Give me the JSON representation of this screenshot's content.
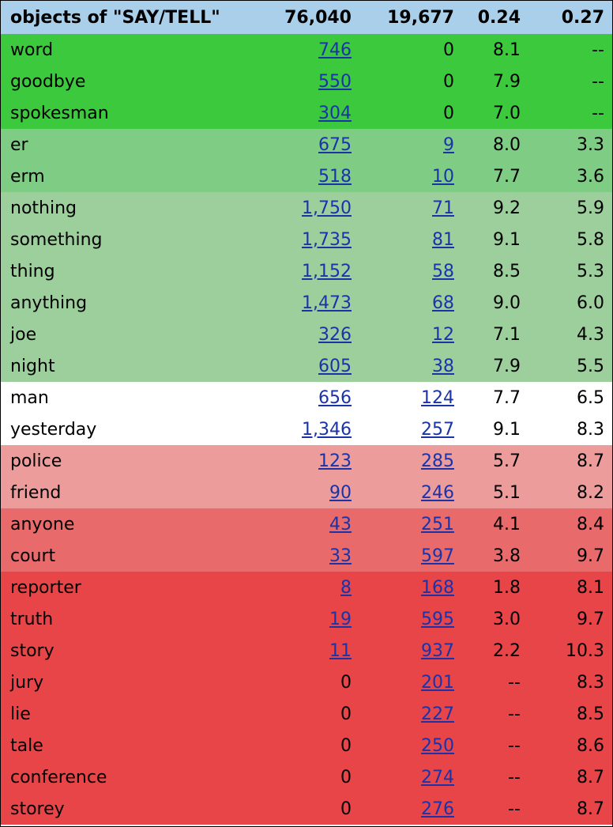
{
  "header": {
    "label": "objects of \"SAY/TELL\"",
    "total_a": "76,040",
    "total_b": "19,677",
    "ratio_a": "0.24",
    "ratio_b": "0.27"
  },
  "colors": {
    "header": "#a9cfeb",
    "g1": "#3cc93d",
    "g2": "#7fcc84",
    "g3": "#9ccf9c",
    "neutral": "#ffffff",
    "r1": "#ec9c9a",
    "r2": "#e86a6a",
    "r3": "#e84549",
    "link": "#1a33a8"
  },
  "rows": [
    {
      "word": "word",
      "a": "746",
      "a_link": true,
      "b": "0",
      "b_link": false,
      "sa": "8.1",
      "sb": "--",
      "band": "g1"
    },
    {
      "word": "goodbye",
      "a": "550",
      "a_link": true,
      "b": "0",
      "b_link": false,
      "sa": "7.9",
      "sb": "--",
      "band": "g1"
    },
    {
      "word": "spokesman",
      "a": "304",
      "a_link": true,
      "b": "0",
      "b_link": false,
      "sa": "7.0",
      "sb": "--",
      "band": "g1"
    },
    {
      "word": "er",
      "a": "675",
      "a_link": true,
      "b": "9",
      "b_link": true,
      "sa": "8.0",
      "sb": "3.3",
      "band": "g2"
    },
    {
      "word": "erm",
      "a": "518",
      "a_link": true,
      "b": "10",
      "b_link": true,
      "sa": "7.7",
      "sb": "3.6",
      "band": "g2"
    },
    {
      "word": "nothing",
      "a": "1,750",
      "a_link": true,
      "b": "71",
      "b_link": true,
      "sa": "9.2",
      "sb": "5.9",
      "band": "g3"
    },
    {
      "word": "something",
      "a": "1,735",
      "a_link": true,
      "b": "81",
      "b_link": true,
      "sa": "9.1",
      "sb": "5.8",
      "band": "g3"
    },
    {
      "word": "thing",
      "a": "1,152",
      "a_link": true,
      "b": "58",
      "b_link": true,
      "sa": "8.5",
      "sb": "5.3",
      "band": "g3"
    },
    {
      "word": "anything",
      "a": "1,473",
      "a_link": true,
      "b": "68",
      "b_link": true,
      "sa": "9.0",
      "sb": "6.0",
      "band": "g3"
    },
    {
      "word": "joe",
      "a": "326",
      "a_link": true,
      "b": "12",
      "b_link": true,
      "sa": "7.1",
      "sb": "4.3",
      "band": "g3"
    },
    {
      "word": "night",
      "a": "605",
      "a_link": true,
      "b": "38",
      "b_link": true,
      "sa": "7.9",
      "sb": "5.5",
      "band": "g3"
    },
    {
      "word": "man",
      "a": "656",
      "a_link": true,
      "b": "124",
      "b_link": true,
      "sa": "7.7",
      "sb": "6.5",
      "band": "neutral"
    },
    {
      "word": "yesterday",
      "a": "1,346",
      "a_link": true,
      "b": "257",
      "b_link": true,
      "sa": "9.1",
      "sb": "8.3",
      "band": "neutral"
    },
    {
      "word": "police",
      "a": "123",
      "a_link": true,
      "b": "285",
      "b_link": true,
      "sa": "5.7",
      "sb": "8.7",
      "band": "r1"
    },
    {
      "word": "friend",
      "a": "90",
      "a_link": true,
      "b": "246",
      "b_link": true,
      "sa": "5.1",
      "sb": "8.2",
      "band": "r1"
    },
    {
      "word": "anyone",
      "a": "43",
      "a_link": true,
      "b": "251",
      "b_link": true,
      "sa": "4.1",
      "sb": "8.4",
      "band": "r2"
    },
    {
      "word": "court",
      "a": "33",
      "a_link": true,
      "b": "597",
      "b_link": true,
      "sa": "3.8",
      "sb": "9.7",
      "band": "r2"
    },
    {
      "word": "reporter",
      "a": "8",
      "a_link": true,
      "b": "168",
      "b_link": true,
      "sa": "1.8",
      "sb": "8.1",
      "band": "r3"
    },
    {
      "word": "truth",
      "a": "19",
      "a_link": true,
      "b": "595",
      "b_link": true,
      "sa": "3.0",
      "sb": "9.7",
      "band": "r3"
    },
    {
      "word": "story",
      "a": "11",
      "a_link": true,
      "b": "937",
      "b_link": true,
      "sa": "2.2",
      "sb": "10.3",
      "band": "r3"
    },
    {
      "word": "jury",
      "a": "0",
      "a_link": false,
      "b": "201",
      "b_link": true,
      "sa": "--",
      "sb": "8.3",
      "band": "r3"
    },
    {
      "word": "lie",
      "a": "0",
      "a_link": false,
      "b": "227",
      "b_link": true,
      "sa": "--",
      "sb": "8.5",
      "band": "r3"
    },
    {
      "word": "tale",
      "a": "0",
      "a_link": false,
      "b": "250",
      "b_link": true,
      "sa": "--",
      "sb": "8.6",
      "band": "r3"
    },
    {
      "word": "conference",
      "a": "0",
      "a_link": false,
      "b": "274",
      "b_link": true,
      "sa": "--",
      "sb": "8.7",
      "band": "r3"
    },
    {
      "word": "storey",
      "a": "0",
      "a_link": false,
      "b": "276",
      "b_link": true,
      "sa": "--",
      "sb": "8.7",
      "band": "r3"
    }
  ]
}
